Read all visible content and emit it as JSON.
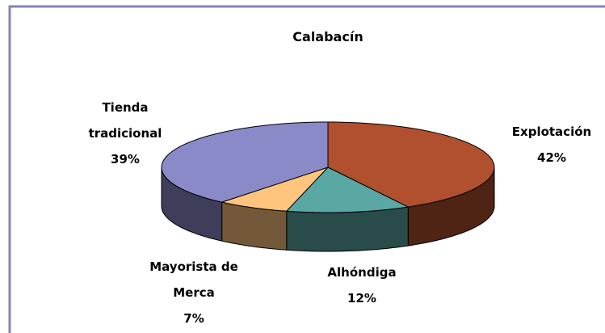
{
  "chart_data": {
    "type": "pie3d",
    "title": "Calabacín",
    "categories": [
      "Explotación",
      "Alhóndiga",
      "Mayorista de Merca",
      "Tienda tradicional"
    ],
    "values": [
      42,
      12,
      7,
      39
    ],
    "value_labels": [
      "42%",
      "12%",
      "7%",
      "39%"
    ],
    "colors": [
      "#b0502e",
      "#5aa8a4",
      "#ffc57e",
      "#8a8ac8"
    ]
  }
}
